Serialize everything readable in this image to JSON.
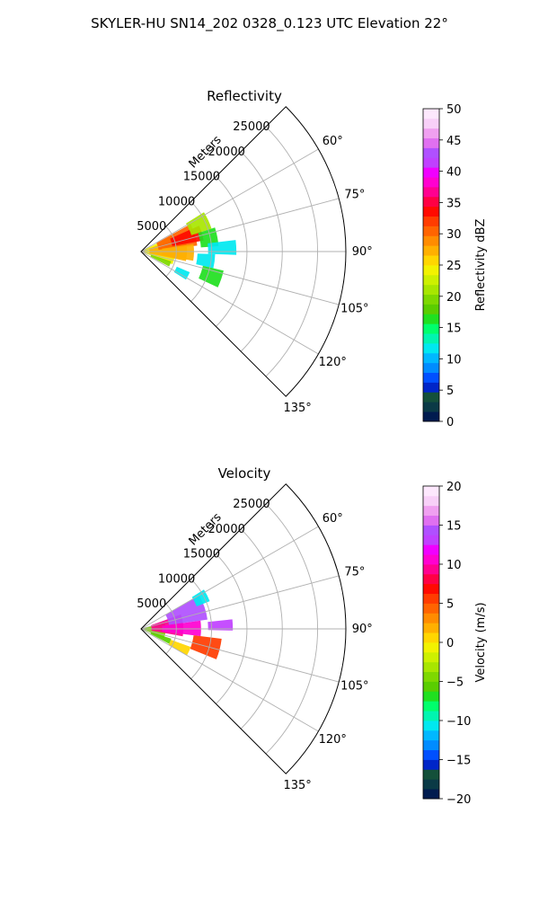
{
  "figure": {
    "suptitle": "SKYLER-HU  SN14_202  0328_0.123 UTC Elevation 22°"
  },
  "chart_data": [
    {
      "type": "heatmap",
      "projection": "polar-sector",
      "title": "Reflectivity",
      "radial_label": "Meters",
      "radial_ticks": [
        5000,
        10000,
        15000,
        20000,
        25000
      ],
      "radial_tick_labels": [
        "5000",
        "10000",
        "15000",
        "20000",
        "25000"
      ],
      "rmax": 29000,
      "angle_range_deg": [
        45,
        135
      ],
      "angle_ticks": [
        45,
        60,
        75,
        90,
        105,
        120,
        135
      ],
      "angle_tick_labels": [
        "",
        "60°",
        "75°",
        "90°",
        "105°",
        "120°",
        "135°"
      ],
      "grid": true,
      "colorbar": {
        "label": "Reflectivity dBZ",
        "min": 0,
        "max": 50,
        "ticks": [
          0,
          5,
          10,
          15,
          20,
          25,
          30,
          35,
          40,
          45,
          50
        ],
        "tick_labels": [
          "0",
          "5",
          "10",
          "15",
          "20",
          "25",
          "30",
          "35",
          "40",
          "45",
          "50"
        ],
        "colors": [
          "#001b4f",
          "#0a3a46",
          "#14503a",
          "#0025c8",
          "#0050ff",
          "#008cff",
          "#00b8ff",
          "#00e8f0",
          "#00f5b0",
          "#00ff6c",
          "#20e020",
          "#5acd00",
          "#7ed800",
          "#a8e600",
          "#cdf000",
          "#f2f200",
          "#ffd600",
          "#ffb000",
          "#ff8c00",
          "#ff6400",
          "#ff3c00",
          "#ff0a00",
          "#ff0044",
          "#ff0090",
          "#ff00d0",
          "#f000ff",
          "#c040ff",
          "#b050ff",
          "#e070f0",
          "#f0a0f0",
          "#f8d0f8",
          "#fde8fd"
        ]
      },
      "echo_regions": [
        {
          "range_m": [
            200,
            4800
          ],
          "azimuth_deg": [
            63,
            112
          ],
          "value": 24
        },
        {
          "range_m": [
            1200,
            6500
          ],
          "azimuth_deg": [
            70,
            102
          ],
          "value": 28
        },
        {
          "range_m": [
            2500,
            8000
          ],
          "azimuth_deg": [
            61,
            84
          ],
          "value": 31
        },
        {
          "range_m": [
            4500,
            9000
          ],
          "azimuth_deg": [
            66,
            80
          ],
          "value": 34
        },
        {
          "range_m": [
            3000,
            7500
          ],
          "azimuth_deg": [
            82,
            100
          ],
          "value": 27
        },
        {
          "range_m": [
            7500,
            10500
          ],
          "azimuth_deg": [
            58,
            72
          ],
          "value": 21
        },
        {
          "range_m": [
            8500,
            11000
          ],
          "azimuth_deg": [
            72,
            86
          ],
          "value": 16
        },
        {
          "range_m": [
            9500,
            13500
          ],
          "azimuth_deg": [
            83,
            92
          ],
          "value": 12
        },
        {
          "range_m": [
            8000,
            10500
          ],
          "azimuth_deg": [
            92,
            103
          ],
          "value": 12
        },
        {
          "range_m": [
            9000,
            12000
          ],
          "azimuth_deg": [
            103,
            115
          ],
          "value": 17
        },
        {
          "range_m": [
            5500,
            7500
          ],
          "azimuth_deg": [
            113,
            122
          ],
          "value": 11
        },
        {
          "range_m": [
            1500,
            4500
          ],
          "azimuth_deg": [
            108,
            118
          ],
          "value": 20
        }
      ]
    },
    {
      "type": "heatmap",
      "projection": "polar-sector",
      "title": "Velocity",
      "radial_label": "Meters",
      "radial_ticks": [
        5000,
        10000,
        15000,
        20000,
        25000
      ],
      "radial_tick_labels": [
        "5000",
        "10000",
        "15000",
        "20000",
        "25000"
      ],
      "rmax": 29000,
      "angle_range_deg": [
        45,
        135
      ],
      "angle_ticks": [
        45,
        60,
        75,
        90,
        105,
        120,
        135
      ],
      "angle_tick_labels": [
        "",
        "60°",
        "75°",
        "90°",
        "105°",
        "120°",
        "135°"
      ],
      "grid": true,
      "colorbar": {
        "label": "Velocity (m/s)",
        "min": -20,
        "max": 20,
        "ticks": [
          -20,
          -15,
          -10,
          -5,
          0,
          5,
          10,
          15,
          20
        ],
        "tick_labels": [
          "−20",
          "−15",
          "−10",
          "−5",
          "0",
          "5",
          "10",
          "15",
          "20"
        ],
        "colors": [
          "#001b4f",
          "#0a3a46",
          "#14503a",
          "#0025c8",
          "#0050ff",
          "#008cff",
          "#00b8ff",
          "#00e8f0",
          "#00f5b0",
          "#00ff6c",
          "#20e020",
          "#5acd00",
          "#7ed800",
          "#a8e600",
          "#cdf000",
          "#f2f200",
          "#ffd600",
          "#ffb000",
          "#ff8c00",
          "#ff6400",
          "#ff3c00",
          "#ff0a00",
          "#ff0044",
          "#ff0090",
          "#ff00d0",
          "#f000ff",
          "#c040ff",
          "#b050ff",
          "#e070f0",
          "#f0a0f0",
          "#f8d0f8",
          "#fde8fd"
        ]
      },
      "echo_regions": [
        {
          "range_m": [
            200,
            3500
          ],
          "azimuth_deg": [
            75,
            112
          ],
          "value": -4
        },
        {
          "range_m": [
            1500,
            6000
          ],
          "azimuth_deg": [
            70,
            100
          ],
          "value": 9
        },
        {
          "range_m": [
            4000,
            9500
          ],
          "azimuth_deg": [
            60,
            82
          ],
          "value": 14
        },
        {
          "range_m": [
            3000,
            8500
          ],
          "azimuth_deg": [
            82,
            97
          ],
          "value": 10
        },
        {
          "range_m": [
            8500,
            10500
          ],
          "azimuth_deg": [
            58,
            68
          ],
          "value": -11
        },
        {
          "range_m": [
            9500,
            13000
          ],
          "azimuth_deg": [
            84,
            91
          ],
          "value": 13
        },
        {
          "range_m": [
            7500,
            11500
          ],
          "azimuth_deg": [
            97,
            112
          ],
          "value": 6
        },
        {
          "range_m": [
            4500,
            7500
          ],
          "azimuth_deg": [
            110,
            120
          ],
          "value": 1
        },
        {
          "range_m": [
            1500,
            4500
          ],
          "azimuth_deg": [
            108,
            118
          ],
          "value": -6
        }
      ]
    }
  ]
}
